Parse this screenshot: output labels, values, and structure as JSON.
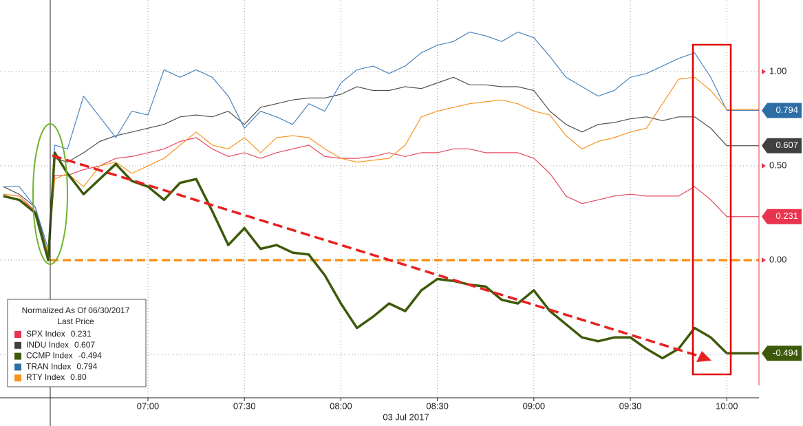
{
  "chart_data": {
    "type": "line",
    "xlabel": "03 Jul 2017",
    "x": [
      375,
      380,
      385,
      389,
      391,
      395,
      400,
      405,
      410,
      415,
      420,
      425,
      430,
      435,
      440,
      445,
      450,
      455,
      460,
      465,
      470,
      475,
      480,
      485,
      490,
      495,
      500,
      505,
      510,
      515,
      520,
      525,
      530,
      535,
      540,
      545,
      550,
      555,
      560,
      565,
      570,
      575,
      580,
      585,
      590,
      595,
      600
    ],
    "xlim": [
      374,
      610
    ],
    "xticks": [
      {
        "value": 420,
        "label": "07:00"
      },
      {
        "value": 450,
        "label": "07:30"
      },
      {
        "value": 480,
        "label": "08:00"
      },
      {
        "value": 510,
        "label": "08:30"
      },
      {
        "value": 540,
        "label": "09:00"
      },
      {
        "value": 570,
        "label": "09:30"
      },
      {
        "value": 600,
        "label": "10:00"
      }
    ],
    "ylim": [
      -0.73,
      1.38
    ],
    "yticks": [
      {
        "value": 1,
        "label": "1.00"
      },
      {
        "value": 0.5,
        "label": "0.50"
      },
      {
        "value": 0,
        "label": "0.00"
      }
    ],
    "ygrid_extra": [
      -0.5
    ],
    "grid": true,
    "reference_line": {
      "value": 0,
      "color": "#f7941d"
    },
    "legend": {
      "title": "Normalized As Of 06/30/2017",
      "subtitle": "Last Price",
      "position": "bottom-left"
    },
    "series": [
      {
        "name": "SPX Index",
        "color": "#e8485f",
        "tag_color": "#e8344e",
        "line_width": 1.2,
        "values": [
          0.35,
          0.34,
          0.26,
          0.03,
          0.45,
          0.45,
          0.48,
          0.5,
          0.54,
          0.55,
          0.57,
          0.59,
          0.63,
          0.65,
          0.59,
          0.55,
          0.57,
          0.54,
          0.57,
          0.59,
          0.61,
          0.55,
          0.54,
          0.54,
          0.55,
          0.57,
          0.55,
          0.57,
          0.57,
          0.59,
          0.59,
          0.57,
          0.57,
          0.57,
          0.54,
          0.46,
          0.34,
          0.3,
          0.32,
          0.34,
          0.35,
          0.34,
          0.34,
          0.34,
          0.39,
          0.32,
          0.231
        ]
      },
      {
        "name": "INDU Index",
        "color": "#505050",
        "tag_color": "#404040",
        "line_width": 1.2,
        "values": [
          0.39,
          0.35,
          0.28,
          0.03,
          0.54,
          0.52,
          0.57,
          0.63,
          0.66,
          0.68,
          0.7,
          0.72,
          0.76,
          0.77,
          0.76,
          0.79,
          0.72,
          0.81,
          0.83,
          0.85,
          0.86,
          0.86,
          0.88,
          0.92,
          0.9,
          0.9,
          0.92,
          0.91,
          0.94,
          0.97,
          0.93,
          0.93,
          0.92,
          0.92,
          0.9,
          0.79,
          0.72,
          0.68,
          0.72,
          0.73,
          0.75,
          0.76,
          0.74,
          0.76,
          0.76,
          0.7,
          0.607
        ]
      },
      {
        "name": "CCMP Index",
        "color": "#3d5a0a",
        "tag_color": "#3d5a0a",
        "line_width": 3.5,
        "values": [
          0.34,
          0.32,
          0.25,
          0.0,
          0.57,
          0.46,
          0.35,
          0.43,
          0.51,
          0.42,
          0.39,
          0.32,
          0.41,
          0.43,
          0.26,
          0.08,
          0.17,
          0.06,
          0.08,
          0.04,
          0.03,
          -0.08,
          -0.23,
          -0.36,
          -0.3,
          -0.23,
          -0.27,
          -0.16,
          -0.1,
          -0.11,
          -0.13,
          -0.14,
          -0.21,
          -0.23,
          -0.16,
          -0.27,
          -0.34,
          -0.41,
          -0.43,
          -0.41,
          -0.41,
          -0.47,
          -0.52,
          -0.47,
          -0.36,
          -0.41,
          -0.494
        ]
      },
      {
        "name": "TRAN Index",
        "color": "#4a86c0",
        "tag_color": "#2e6ea6",
        "line_width": 1.2,
        "values": [
          0.39,
          0.39,
          0.28,
          0.06,
          0.61,
          0.59,
          0.87,
          0.76,
          0.65,
          0.79,
          0.77,
          1.01,
          0.97,
          1.01,
          0.97,
          0.87,
          0.7,
          0.79,
          0.76,
          0.72,
          0.83,
          0.79,
          0.94,
          1.01,
          1.03,
          0.99,
          1.03,
          1.1,
          1.14,
          1.16,
          1.21,
          1.19,
          1.16,
          1.21,
          1.18,
          1.08,
          0.97,
          0.92,
          0.87,
          0.9,
          0.97,
          0.99,
          1.03,
          1.07,
          1.1,
          0.97,
          0.794
        ]
      },
      {
        "name": "RTY Index",
        "color": "#f7941d",
        "tag_color": "#f7941d",
        "line_width": 1.2,
        "tag": false,
        "last_label": "0.80",
        "values": [
          0.35,
          0.34,
          0.25,
          0.03,
          0.43,
          0.46,
          0.39,
          0.5,
          0.52,
          0.46,
          0.5,
          0.54,
          0.61,
          0.68,
          0.61,
          0.59,
          0.65,
          0.57,
          0.65,
          0.66,
          0.65,
          0.59,
          0.54,
          0.52,
          0.53,
          0.54,
          0.61,
          0.76,
          0.79,
          0.81,
          0.83,
          0.84,
          0.85,
          0.83,
          0.79,
          0.77,
          0.66,
          0.59,
          0.63,
          0.65,
          0.68,
          0.7,
          0.83,
          0.96,
          0.97,
          0.9,
          0.8
        ]
      }
    ]
  }
}
